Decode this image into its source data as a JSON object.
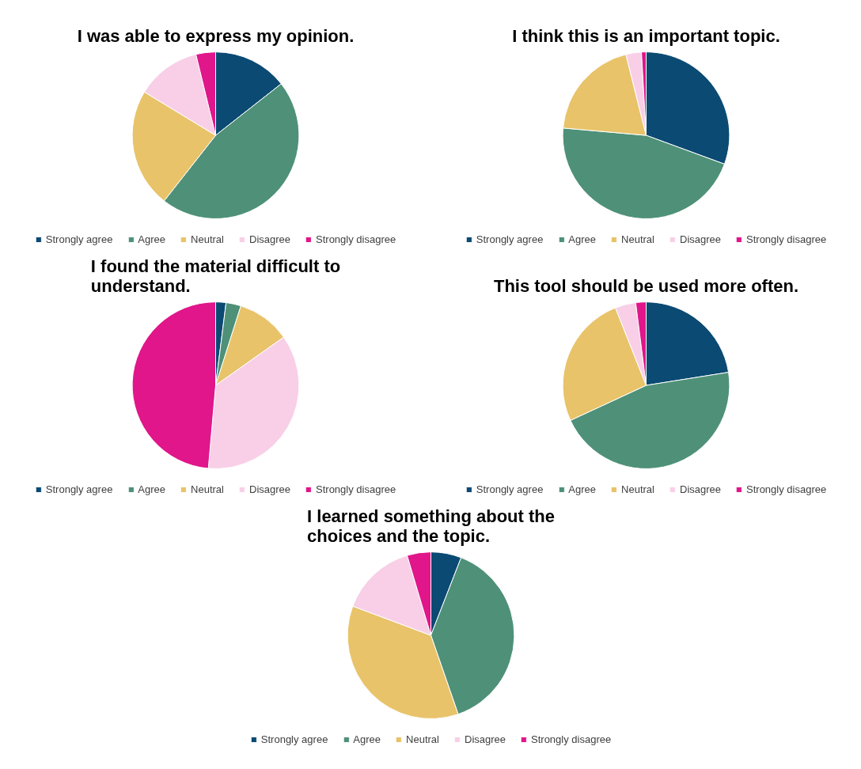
{
  "chart_data": [
    {
      "type": "pie",
      "title": "I was able to express my opinion.",
      "categories": [
        "Strongly agree",
        "Agree",
        "Neutral",
        "Disagree",
        "Strongly disagree"
      ],
      "values": [
        14.4,
        46.2,
        23.1,
        12.5,
        3.8
      ],
      "colors": [
        "#0b4a73",
        "#4e9178",
        "#e8c36a",
        "#f8cfe7",
        "#e0168a"
      ],
      "legend": "bottom"
    },
    {
      "type": "pie",
      "title": "I think this is an important topic.",
      "categories": [
        "Strongly agree",
        "Agree",
        "Neutral",
        "Disagree",
        "Strongly disagree"
      ],
      "values": [
        30.6,
        45.8,
        19.7,
        3.0,
        0.9
      ],
      "colors": [
        "#0b4a73",
        "#4e9178",
        "#e8c36a",
        "#f8cfe7",
        "#e0168a"
      ],
      "legend": "bottom"
    },
    {
      "type": "pie",
      "title": "I found the material difficult to understand.",
      "categories": [
        "Strongly agree",
        "Agree",
        "Neutral",
        "Disagree",
        "Strongly disagree"
      ],
      "values": [
        2.0,
        2.9,
        10.3,
        36.2,
        48.6
      ],
      "colors": [
        "#0b4a73",
        "#4e9178",
        "#e8c36a",
        "#f8cfe7",
        "#e0168a"
      ],
      "legend": "bottom"
    },
    {
      "type": "pie",
      "title": "This tool should be used more often.",
      "categories": [
        "Strongly agree",
        "Agree",
        "Neutral",
        "Disagree",
        "Strongly disagree"
      ],
      "values": [
        22.5,
        45.6,
        25.9,
        4.0,
        2.0
      ],
      "colors": [
        "#0b4a73",
        "#4e9178",
        "#e8c36a",
        "#f8cfe7",
        "#e0168a"
      ],
      "legend": "bottom"
    },
    {
      "type": "pie",
      "title": "I learned something about the choices and the topic.",
      "categories": [
        "Strongly agree",
        "Agree",
        "Neutral",
        "Disagree",
        "Strongly disagree"
      ],
      "values": [
        5.9,
        38.8,
        36.0,
        14.7,
        4.6
      ],
      "colors": [
        "#0b4a73",
        "#4e9178",
        "#e8c36a",
        "#f8cfe7",
        "#e0168a"
      ],
      "legend": "bottom"
    }
  ]
}
